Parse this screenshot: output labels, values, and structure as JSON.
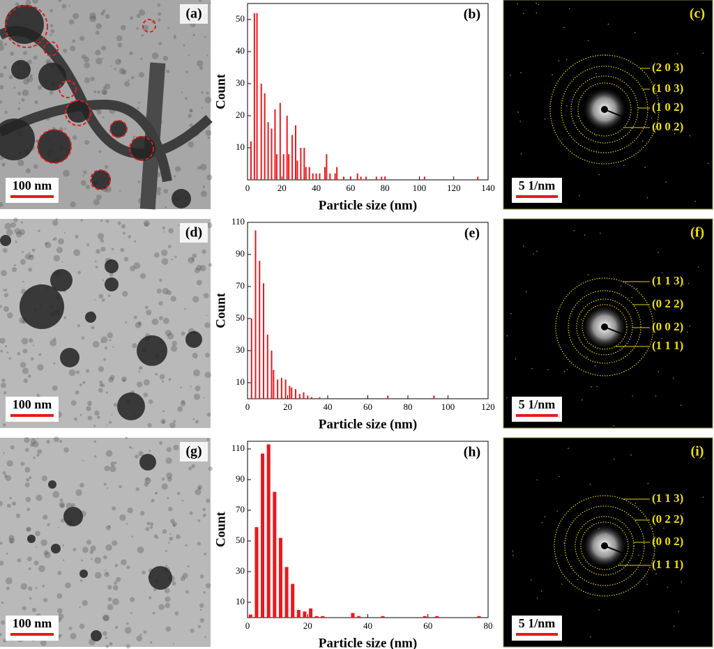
{
  "images": [
    {
      "label": "(a)",
      "scale_bar": "100 nm"
    },
    {
      "label": "(d)",
      "scale_bar": "100 nm"
    },
    {
      "label": "(g)",
      "scale_bar": "100 nm"
    }
  ],
  "chart_data": [
    {
      "type": "bar",
      "annotation": "(b)",
      "x_label": "Particle size (nm)",
      "y_label": "Count",
      "color": "#e8191d",
      "x": [
        2,
        4,
        5.5,
        8,
        10,
        12,
        14,
        16,
        17,
        19,
        21,
        23,
        24,
        26,
        28,
        29,
        31,
        33,
        34,
        36,
        38,
        40,
        42,
        45,
        46,
        48,
        51,
        52,
        56,
        60,
        64,
        66,
        69,
        75,
        78,
        80,
        103,
        134
      ],
      "values": [
        12,
        52,
        52,
        30,
        27,
        18,
        16,
        22,
        8,
        24,
        8,
        20,
        8,
        14,
        17,
        6,
        10,
        10,
        4,
        4,
        2,
        2,
        2,
        4,
        8,
        2,
        2,
        4,
        1,
        1,
        2,
        1,
        1,
        1,
        1,
        1,
        1,
        1
      ],
      "xlim": [
        0,
        140
      ],
      "xticks": [
        0,
        20,
        40,
        60,
        80,
        100,
        120,
        140
      ],
      "ylim": [
        0,
        55
      ],
      "yticks": [
        10,
        20,
        30,
        40,
        50
      ]
    },
    {
      "type": "bar",
      "annotation": "(e)",
      "x_label": "Particle size (nm)",
      "y_label": "Count",
      "color": "#e8191d",
      "x": [
        2,
        4,
        6,
        8,
        10,
        12,
        13,
        15,
        17,
        19,
        21,
        22,
        24,
        26,
        28,
        30,
        32,
        36,
        70,
        93
      ],
      "values": [
        50,
        105,
        86,
        72,
        40,
        30,
        18,
        12,
        13,
        12,
        8,
        7,
        6,
        3,
        4,
        2,
        1,
        1,
        2,
        2
      ],
      "xlim": [
        0,
        120
      ],
      "xticks": [
        0,
        20,
        40,
        60,
        80,
        100,
        120
      ],
      "ylim": [
        0,
        110
      ],
      "yticks": [
        10,
        30,
        50,
        70,
        90,
        110
      ]
    },
    {
      "type": "bar",
      "annotation": "(h)",
      "x_label": "Particle size (nm)",
      "y_label": "Count",
      "color": "#e8191d",
      "x": [
        1,
        3,
        5,
        7,
        9,
        11,
        13,
        15,
        17,
        19,
        21,
        23,
        25,
        35,
        37,
        45,
        59,
        63,
        77
      ],
      "values": [
        2,
        59,
        107,
        113,
        82,
        52,
        33,
        22,
        5,
        4,
        6,
        1,
        1,
        3,
        1,
        1,
        1,
        1,
        1
      ],
      "xlim": [
        0,
        80
      ],
      "xticks": [
        0,
        20,
        40,
        60,
        80
      ],
      "ylim": [
        0,
        115
      ],
      "yticks": [
        10,
        30,
        50,
        70,
        90,
        110
      ]
    }
  ],
  "diffraction": [
    {
      "label": "(c)",
      "scale_bar": "5 1/nm",
      "planes": [
        "(2 0 3)",
        "(1 0 3)",
        "(1 0 2)",
        "(0 0 2)"
      ]
    },
    {
      "label": "(f)",
      "scale_bar": "5 1/nm",
      "planes": [
        "(1 1 3)",
        "(0 2 2)",
        "(0 0 2)",
        "(1 1 1)"
      ]
    },
    {
      "label": "(i)",
      "scale_bar": "5 1/nm",
      "planes": [
        "(1 1 3)",
        "(0 2 2)",
        "(0 0 2)",
        "(1 1 1)"
      ]
    }
  ]
}
